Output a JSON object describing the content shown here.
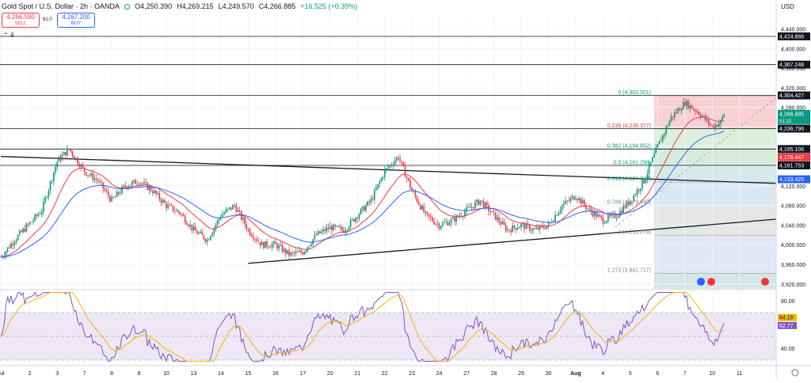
{
  "header": {
    "title": "Gold Spot / U.S. Dollar · 2h · OANDA",
    "open": "O4,250.390",
    "high": "H4,269.215",
    "low": "L4,249.570",
    "close": "C4,266.885",
    "change": "+16.525 (+0.39%)",
    "sell_price": "4,266.590",
    "sell_label": "SELL",
    "spread": "61.0",
    "buy_price": "4,267.200",
    "buy_label": "BUY",
    "collapse_label": "4"
  },
  "colors": {
    "up": "#089981",
    "down": "#f23645",
    "ema_fast": "#f23645",
    "ema_slow": "#2962ff",
    "rsi": "#7e57c2",
    "rsi_ma": "#f7b500"
  },
  "chart_data": [
    {
      "type": "candlestick",
      "currency": "USD",
      "y_axis": {
        "ticks": [
          3920,
          3960,
          4000,
          4040,
          4080,
          4120,
          4160,
          4200,
          4240,
          4280,
          4320,
          4360,
          4400,
          4440
        ],
        "tick_labels": [
          "3,920.000",
          "3,960.000",
          "4,000.000",
          "4,040.000",
          "4,080.000",
          "4,120.000",
          "4,160.000",
          "4,200.000",
          "4,240.000",
          "4,280.000",
          "4,320.000",
          "4,360.000",
          "4,400.000",
          "4,440.000"
        ],
        "range": [
          3910,
          4470
        ]
      },
      "x_axis": {
        "labels": [
          "Jul",
          "2",
          "3",
          "7",
          "8",
          "9",
          "10",
          "13",
          "14",
          "15",
          "16",
          "17",
          "20",
          "21",
          "22",
          "23",
          "24",
          "27",
          "28",
          "29",
          "30",
          "Aug",
          "4",
          "5",
          "6",
          "7",
          "10",
          "11"
        ],
        "label_indices": [
          0,
          17,
          33,
          49,
          65,
          81,
          97,
          113,
          129,
          145,
          161,
          177,
          193,
          209,
          225,
          241,
          257,
          273,
          289,
          305,
          321,
          337,
          353,
          369,
          385,
          401,
          417,
          433
        ],
        "bar_count": 455
      },
      "trend_points": [
        [
          0,
          3975
        ],
        [
          8,
          4010
        ],
        [
          16,
          4040
        ],
        [
          24,
          4070
        ],
        [
          33,
          4170
        ],
        [
          40,
          4195
        ],
        [
          49,
          4150
        ],
        [
          57,
          4130
        ],
        [
          65,
          4090
        ],
        [
          73,
          4120
        ],
        [
          81,
          4130
        ],
        [
          89,
          4110
        ],
        [
          97,
          4080
        ],
        [
          105,
          4065
        ],
        [
          113,
          4030
        ],
        [
          121,
          4010
        ],
        [
          129,
          4060
        ],
        [
          137,
          4080
        ],
        [
          145,
          4030
        ],
        [
          153,
          4000
        ],
        [
          161,
          4000
        ],
        [
          169,
          3980
        ],
        [
          177,
          3985
        ],
        [
          185,
          4020
        ],
        [
          193,
          4035
        ],
        [
          201,
          4030
        ],
        [
          209,
          4060
        ],
        [
          217,
          4090
        ],
        [
          225,
          4150
        ],
        [
          233,
          4180
        ],
        [
          241,
          4110
        ],
        [
          249,
          4060
        ],
        [
          257,
          4040
        ],
        [
          265,
          4050
        ],
        [
          273,
          4070
        ],
        [
          281,
          4090
        ],
        [
          289,
          4060
        ],
        [
          297,
          4030
        ],
        [
          305,
          4040
        ],
        [
          313,
          4030
        ],
        [
          321,
          4040
        ],
        [
          329,
          4080
        ],
        [
          337,
          4100
        ],
        [
          345,
          4070
        ],
        [
          353,
          4050
        ],
        [
          361,
          4060
        ],
        [
          369,
          4090
        ],
        [
          377,
          4130
        ],
        [
          385,
          4200
        ],
        [
          393,
          4260
        ],
        [
          401,
          4290
        ],
        [
          409,
          4270
        ],
        [
          417,
          4240
        ],
        [
          422,
          4250
        ],
        [
          424,
          4266.885
        ]
      ],
      "horizontal_levels": [
        {
          "value": 4424.866,
          "label": "4,424.866"
        },
        {
          "value": 4367.248,
          "label": "4,367.248"
        },
        {
          "value": 4304.427,
          "label": "4,304.427"
        },
        {
          "value": 4236.796,
          "label": "4,236.796"
        },
        {
          "value": 4195.106,
          "label": "4,195.106"
        },
        {
          "value": 4161.753,
          "label": "4,161.753"
        }
      ],
      "price_badges": [
        {
          "value": 4266.885,
          "label": "4,266.885",
          "sub": "51:13",
          "color": "#089981"
        },
        {
          "value": 4178.447,
          "label": "4,178.447",
          "color": "#f23645"
        },
        {
          "value": 4133.425,
          "label": "4,133.425",
          "color": "#2962ff"
        }
      ],
      "fibonacci": {
        "levels": [
          {
            "ratio": "0",
            "value": 4303.501,
            "label": "0 (4,303.501)",
            "fill": "#f8c8cc"
          },
          {
            "ratio": "0.236",
            "value": 4236.377,
            "label": "0.236 (4,236.377)",
            "fill": "#d6ecd6"
          },
          {
            "ratio": "0.382",
            "value": 4194.852,
            "label": "0.382 (4,194.852)",
            "fill": "#cfe9d4"
          },
          {
            "ratio": "0.5",
            "value": 4161.29,
            "label": "0.5 (4,161.290)",
            "fill": "#cde8e8"
          },
          {
            "ratio": "0.618",
            "value": 4127.728,
            "label": "0.618 (4,127.728)",
            "fill": "#d4e4f4"
          },
          {
            "ratio": "0.786",
            "value": 4079.945,
            "label": "0.786 (4,079.945)",
            "fill": "#e2e2e2"
          },
          {
            "ratio": "1",
            "value": 4019.079,
            "label": "1 (4,019.079)",
            "fill": "#dde3f7"
          },
          {
            "ratio": "1.272",
            "value": 3941.717,
            "label": "1.272 (3,941.717)",
            "fill": "#cce3e0"
          }
        ]
      },
      "trendlines": [
        {
          "name": "upper",
          "from": [
            0,
            4180
          ],
          "to": [
            455,
            4125
          ]
        },
        {
          "name": "lower",
          "from": [
            145,
            3962
          ],
          "to": [
            455,
            4052
          ]
        }
      ]
    },
    {
      "type": "line",
      "y_axis": {
        "ticks": [
          40,
          80
        ],
        "tick_labels": [
          "40.00",
          "80.00"
        ],
        "range": [
          28,
          88
        ]
      },
      "bands": {
        "upper": 70,
        "middle": 50,
        "lower": 30
      },
      "series": [
        {
          "value": 64.18,
          "label": "64.18",
          "color": "#f7b500"
        },
        {
          "value": 62.77,
          "label": "62.77",
          "color": "#7e57c2"
        }
      ]
    }
  ]
}
